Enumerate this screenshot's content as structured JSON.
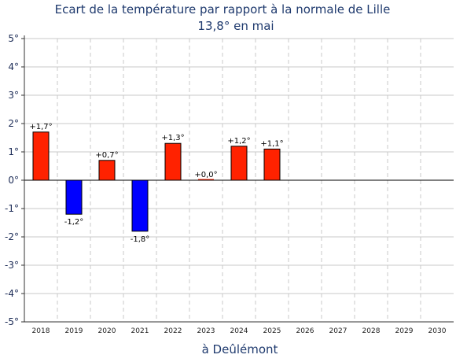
{
  "chart_data": {
    "type": "bar",
    "title": "Ecart de la température par rapport à la normale de Lille",
    "subtitle": "13,8° en mai",
    "xlabel": "à Deûlémont",
    "ylabel": "",
    "ylim": [
      -5,
      5
    ],
    "yticks": [
      "-5°",
      "-4°",
      "-3°",
      "-2°",
      "-1°",
      "0°",
      "1°",
      "2°",
      "3°",
      "4°",
      "5°"
    ],
    "categories": [
      "2018",
      "2019",
      "2020",
      "2021",
      "2022",
      "2023",
      "2024",
      "2025",
      "2026",
      "2027",
      "2028",
      "2029",
      "2030"
    ],
    "values": [
      1.7,
      -1.2,
      0.7,
      -1.8,
      1.3,
      0.0,
      1.2,
      1.1,
      null,
      null,
      null,
      null,
      null
    ],
    "data_labels": [
      "+1,7°",
      "-1,2°",
      "+0,7°",
      "-1,8°",
      "+1,3°",
      "+0,0°",
      "+1,2°",
      "+1,1°",
      "",
      "",
      "",
      "",
      ""
    ],
    "colors": {
      "positive": "#ff2200",
      "negative": "#0000ff",
      "grid_h": "#c8c8c8",
      "grid_v": "#c8c8c8"
    },
    "grid": true,
    "legend": "none"
  }
}
